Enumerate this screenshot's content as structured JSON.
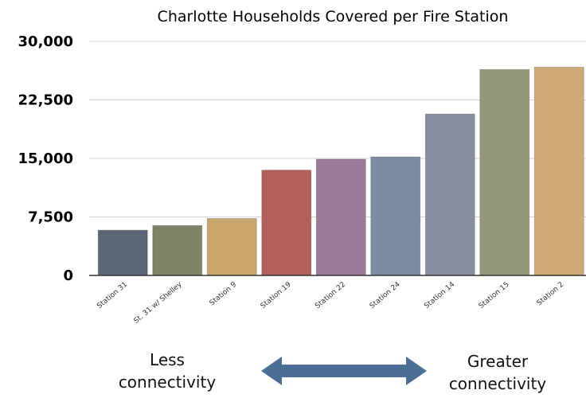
{
  "chart_data": {
    "type": "bar",
    "title": "Charlotte Households Covered per Fire Station",
    "categories": [
      "Station 31",
      "St. 31 w/ Shelley",
      "Station 9",
      "Station 19",
      "Station 22",
      "Station 24",
      "Station 14",
      "Station 15",
      "Station 2"
    ],
    "values": [
      5800,
      6400,
      7300,
      13500,
      14900,
      15200,
      20700,
      26400,
      26700
    ],
    "colors": [
      "#5b6677",
      "#7c8464",
      "#c9a66e",
      "#b35f5a",
      "#9c7a98",
      "#7c8ca3",
      "#888ea0",
      "#939a7a",
      "#cdaa76"
    ],
    "ylim": [
      0,
      30000
    ],
    "yticks": [
      0,
      7500,
      15000,
      22500,
      30000
    ],
    "ytick_labels": [
      "0",
      "7,500",
      "15,000",
      "22,500",
      "30,000"
    ],
    "grid": true,
    "xlabel": "",
    "ylabel": ""
  },
  "annotations": {
    "left": [
      "Less",
      "connectivity"
    ],
    "right": [
      "Greater",
      "connectivity"
    ],
    "arrow_icon": "double-headed-arrow-icon",
    "arrow_color": "#4b6f96"
  }
}
